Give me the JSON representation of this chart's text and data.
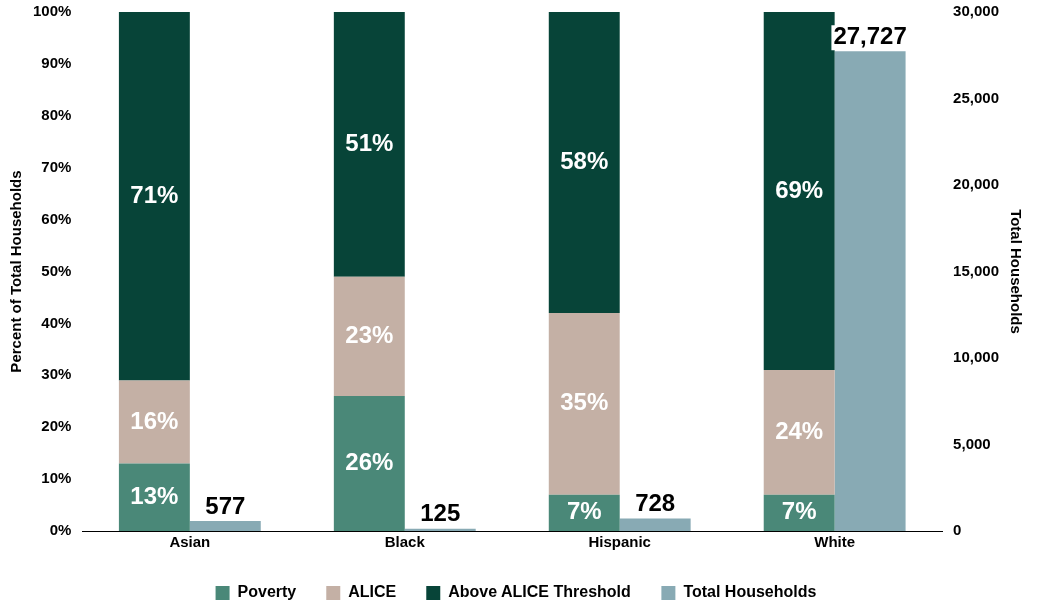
{
  "chart_data": {
    "type": "bar",
    "stacked": true,
    "categories": [
      "Asian",
      "Black",
      "Hispanic",
      "White"
    ],
    "ylabel": "Percent of Total Households",
    "y2label": "Total Households",
    "ylim": [
      0,
      100
    ],
    "yticks": [
      {
        "value": 0,
        "label": "0%"
      },
      {
        "value": 10,
        "label": "10%"
      },
      {
        "value": 20,
        "label": "20%"
      },
      {
        "value": 30,
        "label": "30%"
      },
      {
        "value": 40,
        "label": "40%"
      },
      {
        "value": 50,
        "label": "50%"
      },
      {
        "value": 60,
        "label": "60%"
      },
      {
        "value": 70,
        "label": "70%"
      },
      {
        "value": 80,
        "label": "80%"
      },
      {
        "value": 90,
        "label": "90%"
      },
      {
        "value": 100,
        "label": "100%"
      }
    ],
    "y2lim": [
      0,
      30000
    ],
    "y2ticks": [
      0,
      {
        "value": 5000,
        "label": "5,000"
      },
      {
        "value": 10000,
        "label": "10,000"
      },
      {
        "value": 15000,
        "label": "15,000"
      },
      {
        "value": 20000,
        "label": "20,000"
      },
      {
        "value": 25000,
        "label": "25,000"
      },
      {
        "value": 30000,
        "label": "30,000"
      }
    ],
    "grid": false,
    "legend": "bottom",
    "series": [
      {
        "name": "Poverty",
        "color": "#4a8878",
        "values": [
          13,
          26,
          7,
          7
        ],
        "value_labels": [
          "13%",
          "26%",
          "7%",
          "7%"
        ]
      },
      {
        "name": "ALICE",
        "color": "#c4b0a5",
        "values": [
          16,
          23,
          35,
          24
        ],
        "value_labels": [
          "16%",
          "23%",
          "35%",
          "24%"
        ]
      },
      {
        "name": "Above ALICE Threshold",
        "color": "#074438",
        "values": [
          71,
          51,
          58,
          69
        ],
        "value_labels": [
          "71%",
          "51%",
          "58%",
          "69%"
        ]
      },
      {
        "name": "Total Households",
        "color": "#88aab4",
        "axis": "y2",
        "values": [
          577,
          125,
          728,
          27727
        ],
        "value_labels": [
          "577",
          "125",
          "728",
          "27,727"
        ]
      }
    ]
  }
}
